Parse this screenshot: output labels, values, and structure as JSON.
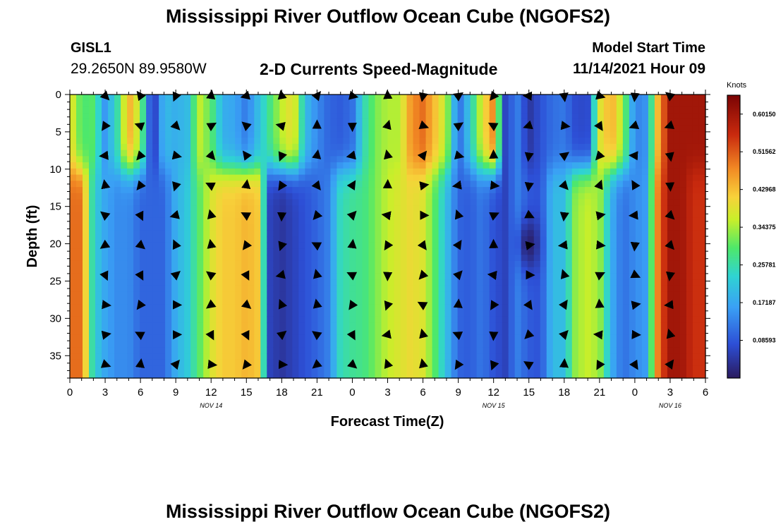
{
  "header": {
    "title": "Mississippi River Outflow Ocean Cube (NGOFS2)",
    "station": "GISL1",
    "coords": "29.2650N  89.9580W",
    "subtitle": "2-D Currents Speed-Magnitude",
    "model_start_label": "Model Start Time",
    "model_start_value": "11/14/2021 Hour 09"
  },
  "footer": {
    "title": "Mississippi River Outflow Ocean Cube (NGOFS2)"
  },
  "chart_data": {
    "type": "heatmap",
    "xlabel": "Forecast Time(Z)",
    "ylabel": "Depth (ft)",
    "x_ticks": [
      "0",
      "3",
      "6",
      "9",
      "12",
      "15",
      "18",
      "21",
      "0",
      "3",
      "6",
      "9",
      "12",
      "15",
      "18",
      "21",
      "0",
      "3",
      "6"
    ],
    "x_tick_values": [
      0,
      3,
      6,
      9,
      12,
      15,
      18,
      21,
      24,
      27,
      30,
      33,
      36,
      39,
      42,
      45,
      48,
      51,
      54
    ],
    "date_labels": [
      {
        "x": 12,
        "label": "NOV 14"
      },
      {
        "x": 36,
        "label": "NOV 15"
      },
      {
        "x": 51,
        "label": "NOV 16"
      }
    ],
    "y_ticks": [
      0,
      5,
      10,
      15,
      20,
      25,
      30,
      35
    ],
    "xlim": [
      0,
      54
    ],
    "ylim": [
      0,
      38
    ],
    "y_inverted": true,
    "colorbar": {
      "unit": "Knots",
      "ticks": [
        "0.60150",
        "0.51562",
        "0.42968",
        "0.34375",
        "0.25781",
        "0.17187",
        "0.08593"
      ],
      "tick_values": [
        0.6015,
        0.51562,
        0.42968,
        0.34375,
        0.25781,
        0.17187,
        0.08593
      ],
      "min": 0.0,
      "max": 0.6445,
      "colormap": "jet"
    },
    "vector_times": [
      3,
      6,
      9,
      12,
      15,
      18,
      21,
      24,
      27,
      30,
      33,
      36,
      39,
      42,
      45,
      48,
      51
    ],
    "vector_depths": [
      0,
      4,
      8,
      12,
      16,
      20,
      24,
      28,
      32,
      36
    ],
    "surface_profile": [
      0.4,
      0.29,
      0.3,
      0.15,
      0.25,
      0.45,
      0.34,
      0.02,
      0.2,
      0.18,
      0.2,
      0.36,
      0.3,
      0.18,
      0.17,
      0.12,
      0.2,
      0.28,
      0.36,
      0.4,
      0.2,
      0.14,
      0.1,
      0.09,
      0.11,
      0.25,
      0.32,
      0.35,
      0.35,
      0.47,
      0.5,
      0.43,
      0.35,
      0.1,
      0.22,
      0.38,
      0.48,
      0.06,
      0.13,
      0.04,
      0.08,
      0.11,
      0.12,
      0.07,
      0.07,
      0.38,
      0.45,
      0.34,
      0.13,
      0.15,
      0.45,
      0.6,
      0.6,
      0.6
    ],
    "deep_profile": [
      0.5,
      0.5,
      0.23,
      0.17,
      0.14,
      0.14,
      0.1,
      0.1,
      0.1,
      0.18,
      0.22,
      0.3,
      0.38,
      0.42,
      0.42,
      0.44,
      0.42,
      0.06,
      0.04,
      0.06,
      0.08,
      0.1,
      0.13,
      0.25,
      0.27,
      0.28,
      0.32,
      0.36,
      0.38,
      0.4,
      0.38,
      0.3,
      0.2,
      0.1,
      0.09,
      0.12,
      0.08,
      0.06,
      0.13,
      0.09,
      0.08,
      0.2,
      0.2,
      0.34,
      0.36,
      0.34,
      0.18,
      0.11,
      0.14,
      0.16,
      0.5,
      0.6,
      0.6,
      0.55
    ],
    "low_spot": {
      "time": 39,
      "depth": 20,
      "speed": 0.01
    }
  }
}
